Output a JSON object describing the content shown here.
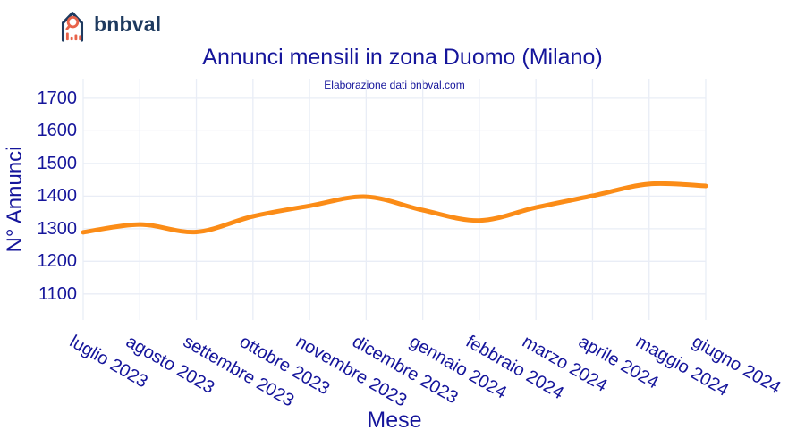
{
  "logo": {
    "text": "bnbval"
  },
  "header": {
    "title": "Annunci mensili in zona Duomo (Milano)",
    "subtitle": "Elaborazione dati bnbval.com"
  },
  "chart_data": {
    "type": "line",
    "title": "Annunci mensili in zona Duomo (Milano)",
    "subtitle": "Elaborazione dati bnbval.com",
    "xlabel": "Mese",
    "ylabel": "N° Annunci",
    "categories": [
      "luglio 2023",
      "agosto 2023",
      "settembre 2023",
      "ottobre 2023",
      "novembre 2023",
      "dicembre 2023",
      "gennaio 2024",
      "febbraio 2024",
      "marzo 2024",
      "aprile 2024",
      "maggio 2024",
      "giugno 2024"
    ],
    "series": [
      {
        "name": "N° Annunci",
        "values": [
          1289,
          1313,
          1290,
          1338,
          1370,
          1398,
          1357,
          1325,
          1365,
          1401,
          1437,
          1431
        ],
        "color": "#fb8c17",
        "line_width": 5,
        "shape": "spline"
      }
    ],
    "yticks": [
      1100,
      1200,
      1300,
      1400,
      1500,
      1600,
      1700
    ],
    "ylim": [
      1020,
      1760
    ],
    "grid": true,
    "legend": "none",
    "x_tick_angle": 30
  },
  "colors": {
    "chart_text": "#15159b",
    "grid": "#e9edf6",
    "line": "#fb8c17",
    "logo_navy": "#1e3a5f",
    "logo_coral": "#e8634a",
    "background": "#ffffff"
  }
}
